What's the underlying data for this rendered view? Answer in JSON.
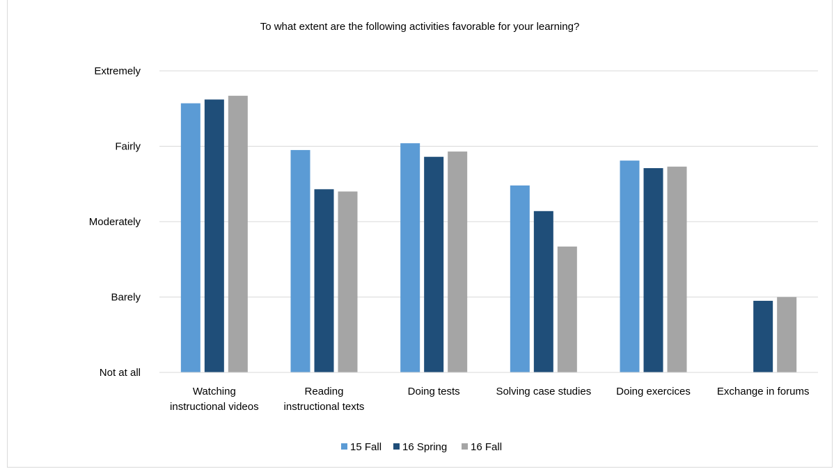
{
  "chart_data": {
    "type": "bar",
    "title": "To what extent are the following activities favorable for your learning?",
    "xlabel": "",
    "ylabel": "",
    "y_tick_labels": [
      "Not at all",
      "Barely",
      "Moderately",
      "Fairly",
      "Extremely"
    ],
    "ylim": [
      1,
      5
    ],
    "grid": true,
    "legend_position": "bottom",
    "categories": [
      [
        "Watching",
        "instructional videos"
      ],
      [
        "Reading",
        "instructional texts"
      ],
      [
        "Doing tests"
      ],
      [
        "Solving case studies"
      ],
      [
        "Doing exercices"
      ],
      [
        "Exchange in forums"
      ]
    ],
    "series": [
      {
        "name": "15 Fall",
        "color": "#5b9bd5",
        "values": [
          4.57,
          3.95,
          4.04,
          3.48,
          3.81,
          null
        ]
      },
      {
        "name": "16 Spring",
        "color": "#1f4e79",
        "values": [
          4.62,
          3.43,
          3.86,
          3.14,
          3.71,
          1.95
        ]
      },
      {
        "name": "16 Fall",
        "color": "#a5a5a5",
        "values": [
          4.67,
          3.4,
          3.93,
          2.67,
          3.73,
          2.0
        ]
      }
    ]
  }
}
